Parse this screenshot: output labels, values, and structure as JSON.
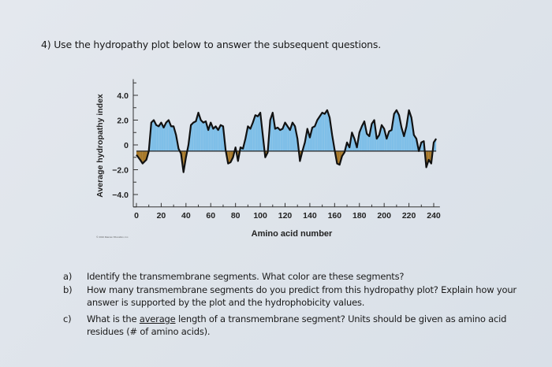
{
  "heading": "4) Use the hydropathy plot below to answer the subsequent questions.",
  "credit": "© 2010 Pearson Education, Inc.",
  "chart_data": {
    "type": "area",
    "xlabel": "Amino acid number",
    "ylabel": "Average hydropathy index",
    "xlim": [
      0,
      245
    ],
    "ylim": [
      -5,
      5
    ],
    "x_ticks": [
      "0",
      "20",
      "40",
      "60",
      "80",
      "100",
      "120",
      "140",
      "160",
      "180",
      "200",
      "220",
      "240"
    ],
    "y_ticks": [
      "4.0",
      "2.0",
      "0",
      "−2.0",
      "−4.0"
    ],
    "colors": {
      "hydrophobic": "#7fbfe8",
      "hydrophilic": "#a8792a",
      "line": "#111111"
    },
    "x": [
      0,
      3,
      5,
      8,
      10,
      12,
      14,
      16,
      18,
      20,
      22,
      24,
      26,
      28,
      30,
      32,
      34,
      36,
      38,
      40,
      42,
      44,
      46,
      48,
      50,
      52,
      54,
      56,
      58,
      60,
      62,
      64,
      66,
      68,
      70,
      72,
      74,
      76,
      78,
      80,
      82,
      84,
      86,
      88,
      90,
      92,
      94,
      96,
      98,
      100,
      102,
      104,
      106,
      108,
      110,
      112,
      114,
      116,
      118,
      120,
      122,
      124,
      126,
      128,
      130,
      132,
      134,
      136,
      138,
      140,
      142,
      144,
      146,
      148,
      150,
      152,
      154,
      156,
      158,
      160,
      162,
      164,
      166,
      168,
      170,
      172,
      174,
      176,
      178,
      180,
      182,
      184,
      186,
      188,
      190,
      192,
      194,
      196,
      198,
      200,
      202,
      204,
      206,
      208,
      210,
      212,
      214,
      216,
      218,
      220,
      222,
      224,
      226,
      228,
      230,
      232,
      234,
      236,
      238,
      240,
      242
    ],
    "y": [
      -0.8,
      -1.2,
      -1.5,
      -1.2,
      -0.5,
      1.8,
      2.0,
      1.6,
      1.5,
      1.8,
      1.4,
      1.8,
      2.0,
      1.5,
      1.5,
      0.8,
      -0.3,
      -0.7,
      -2.2,
      -1.0,
      0,
      1.6,
      1.8,
      1.9,
      2.6,
      2.0,
      1.8,
      1.9,
      1.2,
      1.8,
      1.3,
      1.5,
      1.2,
      1.6,
      1.5,
      -0.4,
      -1.5,
      -1.4,
      -1.0,
      -0.2,
      -1.3,
      -0.2,
      -0.3,
      0.5,
      1.5,
      1.3,
      1.8,
      2.4,
      2.3,
      2.6,
      0.8,
      -1.0,
      -0.6,
      2.0,
      2.6,
      1.3,
      1.4,
      1.2,
      1.3,
      1.8,
      1.5,
      1.2,
      1.8,
      1.5,
      0.5,
      -1.3,
      -0.5,
      0.2,
      1.3,
      0.6,
      1.4,
      1.5,
      2.0,
      2.3,
      2.6,
      2.5,
      2.8,
      2.2,
      0.8,
      -0.4,
      -1.5,
      -1.6,
      -0.9,
      -0.6,
      0.2,
      -0.2,
      1.0,
      0.5,
      -0.2,
      1.0,
      1.5,
      1.9,
      0.9,
      0.7,
      1.7,
      2.0,
      0.5,
      0.8,
      1.6,
      1.3,
      0.5,
      1.1,
      1.2,
      2.5,
      2.8,
      2.4,
      1.4,
      0.7,
      1.5,
      2.8,
      2.2,
      0.8,
      0.5,
      -0.5,
      0.2,
      0.3,
      -1.8,
      -1.2,
      -1.5,
      0.2,
      0.5
    ]
  },
  "questions": [
    {
      "label": "a)",
      "text": "Identify the transmembrane segments. What color are these segments?"
    },
    {
      "label": "b)",
      "text": "How many transmembrane segments do you predict from this hydropathy plot? Explain how your answer is supported by the plot and the hydrophobicity values."
    },
    {
      "label": "c)",
      "text_before": "What is the ",
      "text_underlined": "average",
      "text_after": " length of a transmembrane segment? Units should be given as amino acid residues (# of amino acids)."
    }
  ]
}
